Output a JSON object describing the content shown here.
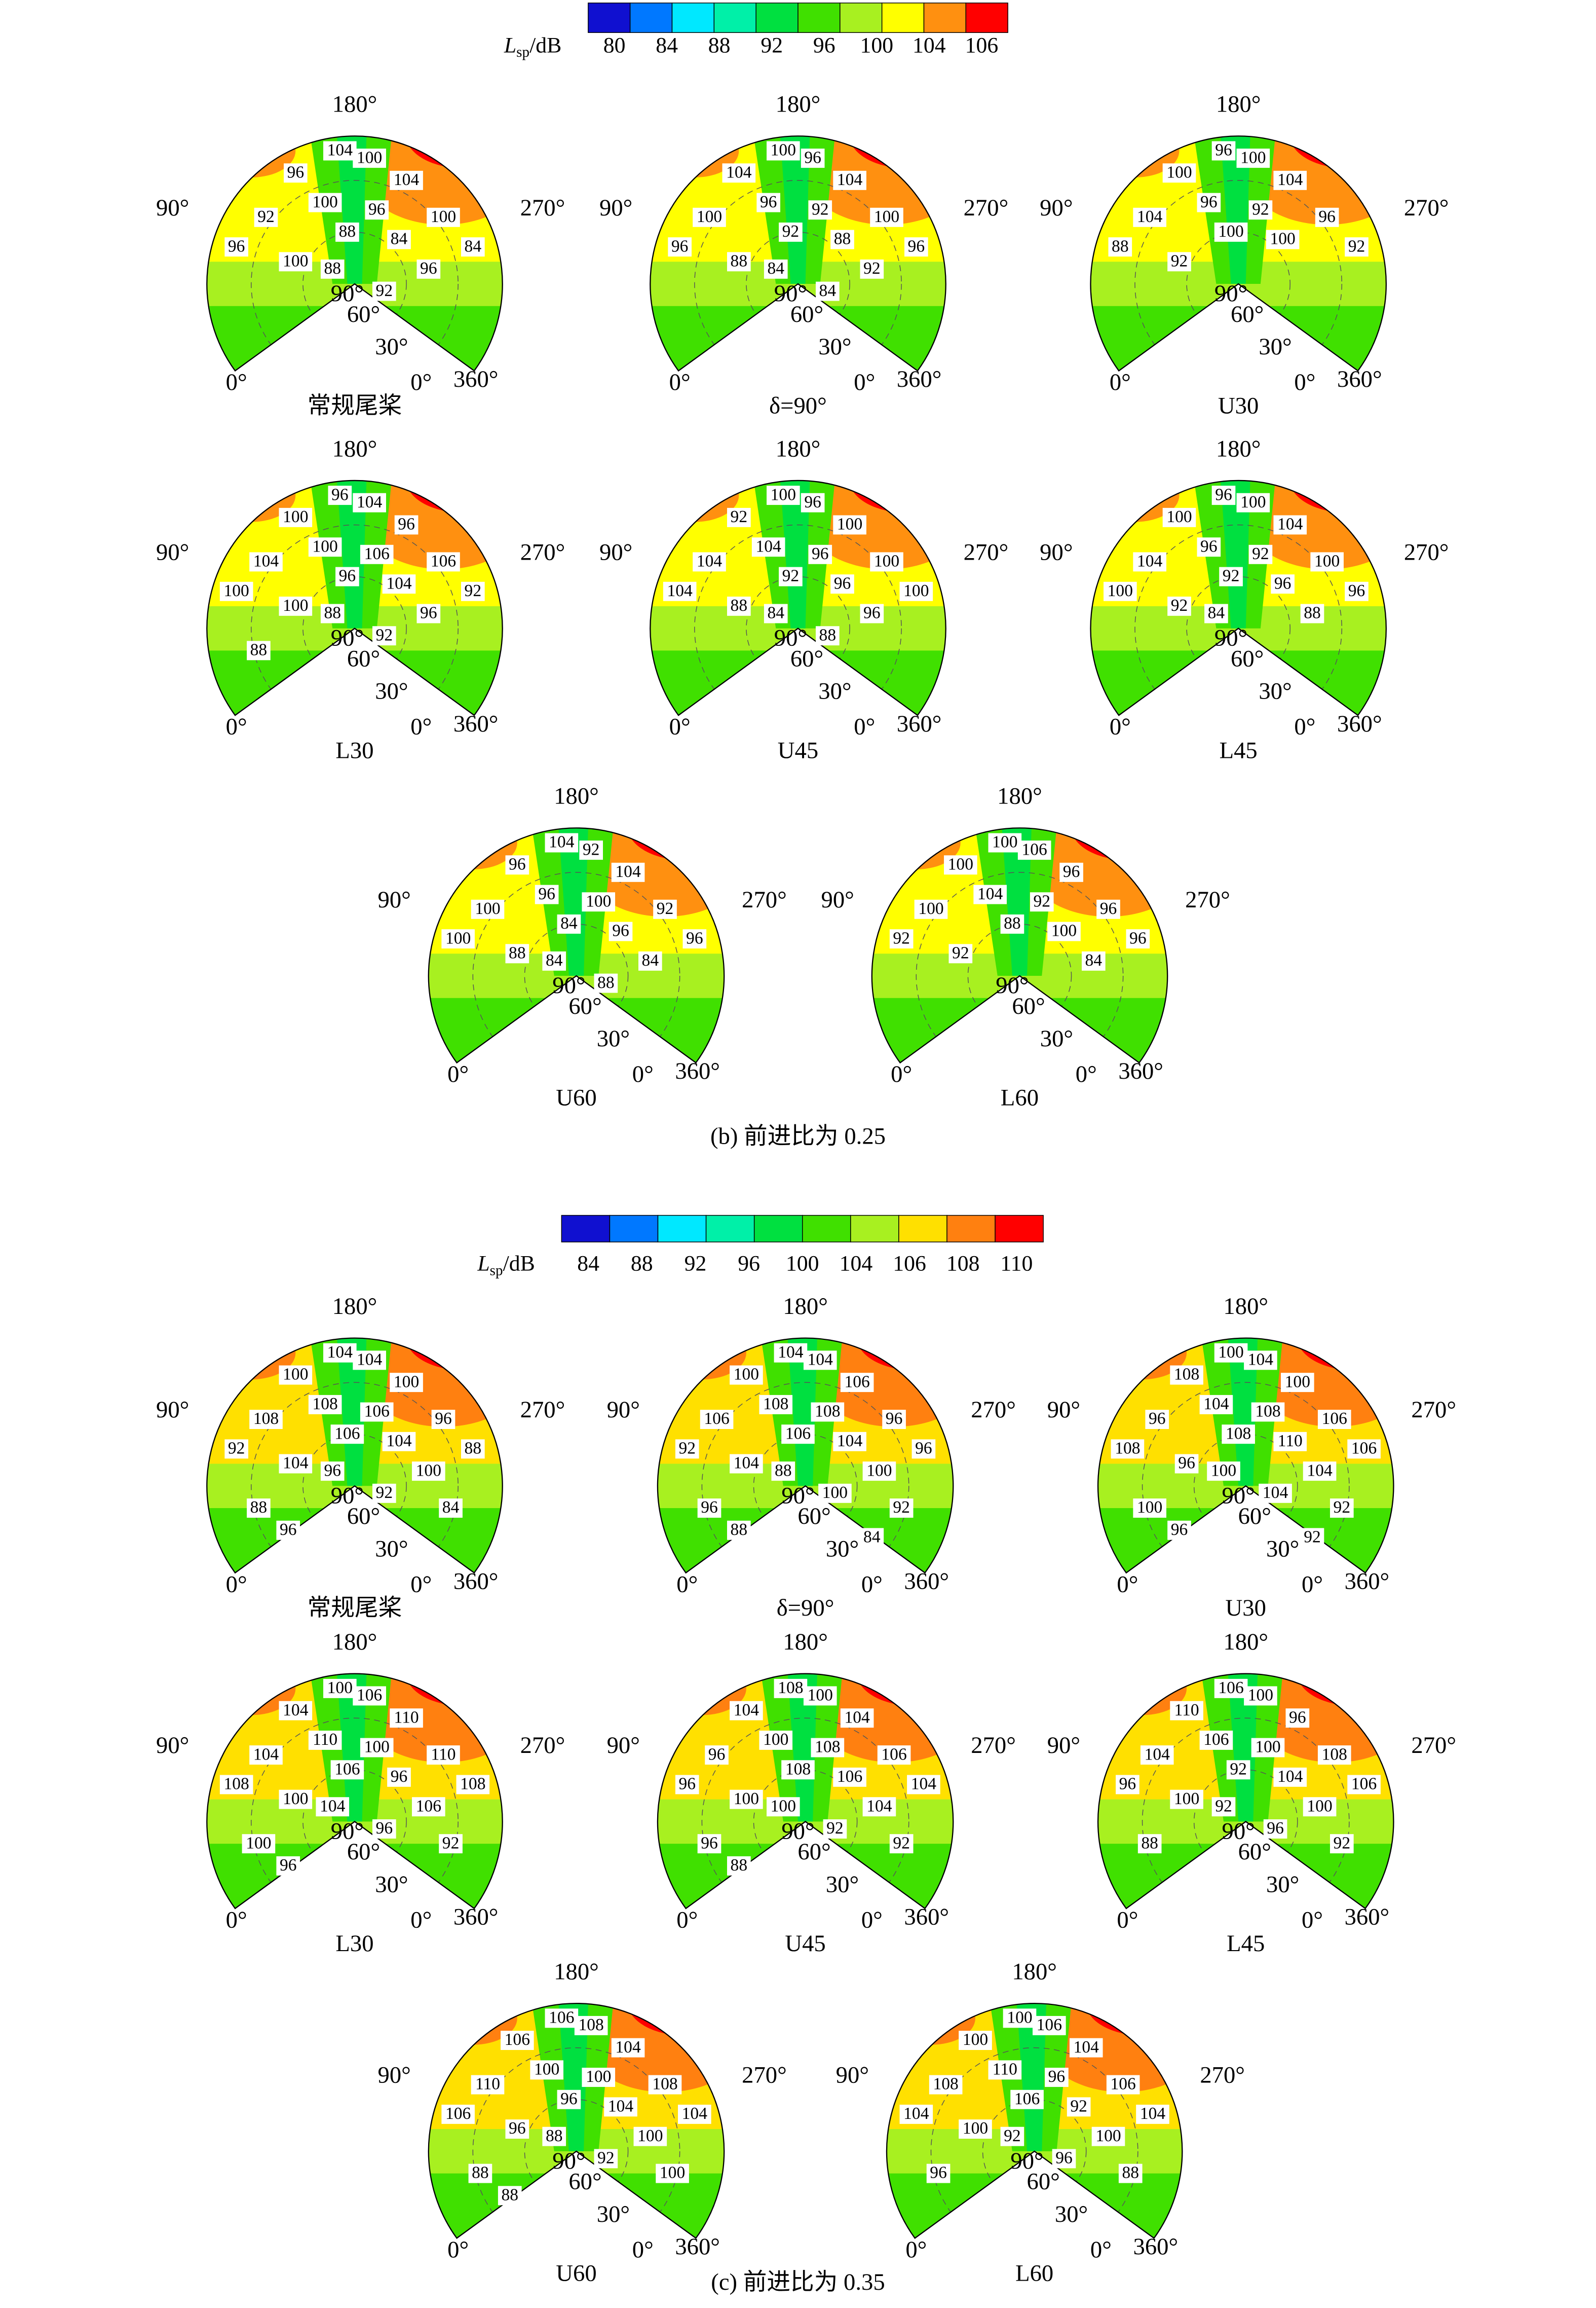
{
  "angle_labels": [
    "180°",
    "90°",
    "270°",
    "90°",
    "60°",
    "30°",
    "0°",
    "0°",
    "360°"
  ],
  "panels": [
    {
      "caption": "(b) 前进比为 0.25",
      "colorbar": {
        "label": "L",
        "label_sub": "sp",
        "label_unit": "/dB",
        "ticks": [
          80,
          84,
          88,
          92,
          96,
          100,
          104,
          106
        ],
        "colors": [
          "#1010d0",
          "#0078ff",
          "#00e8ff",
          "#00f0a8",
          "#00e040",
          "#40e000",
          "#a8f020",
          "#ffff00",
          "#ff9010",
          "#ff0000"
        ]
      },
      "plots": [
        {
          "name": "常规尾桨",
          "contour_labels": [
            104,
            100,
            96,
            104,
            100,
            96,
            92,
            100,
            88,
            84,
            96,
            84,
            100,
            96,
            88,
            92
          ]
        },
        {
          "name": "δ=90°",
          "contour_labels": [
            100,
            96,
            104,
            104,
            96,
            92,
            100,
            100,
            92,
            88,
            96,
            96,
            88,
            92,
            84,
            84
          ]
        },
        {
          "name": "U30",
          "contour_labels": [
            96,
            100,
            100,
            104,
            96,
            92,
            104,
            96,
            100,
            100,
            88,
            92,
            92
          ]
        },
        {
          "name": "L30",
          "contour_labels": [
            96,
            104,
            100,
            96,
            100,
            106,
            104,
            106,
            96,
            104,
            100,
            92,
            100,
            96,
            88,
            92,
            88
          ]
        },
        {
          "name": "U45",
          "contour_labels": [
            100,
            96,
            92,
            100,
            104,
            96,
            104,
            100,
            92,
            96,
            104,
            100,
            88,
            96,
            84,
            88
          ]
        },
        {
          "name": "L45",
          "contour_labels": [
            96,
            100,
            100,
            104,
            96,
            92,
            104,
            100,
            92,
            96,
            100,
            96,
            92,
            88,
            84
          ]
        },
        {
          "name": "U60",
          "contour_labels": [
            104,
            92,
            96,
            104,
            96,
            100,
            100,
            92,
            84,
            96,
            100,
            96,
            88,
            84,
            84,
            88
          ]
        },
        {
          "name": "L60",
          "contour_labels": [
            100,
            106,
            100,
            96,
            104,
            92,
            100,
            96,
            88,
            100,
            92,
            96,
            92,
            84
          ]
        }
      ]
    },
    {
      "caption": "(c) 前进比为 0.35",
      "colorbar": {
        "label": "L",
        "label_sub": "sp",
        "label_unit": "/dB",
        "ticks": [
          84,
          88,
          92,
          96,
          100,
          104,
          106,
          108,
          110
        ],
        "colors": [
          "#1010d0",
          "#0078ff",
          "#00e8ff",
          "#00f0a8",
          "#00e040",
          "#40e000",
          "#a8f020",
          "#ffe000",
          "#ff8010",
          "#ff0000"
        ]
      },
      "plots": [
        {
          "name": "常规尾桨",
          "contour_labels": [
            104,
            104,
            100,
            100,
            108,
            106,
            108,
            96,
            106,
            104,
            92,
            88,
            104,
            100,
            96,
            92,
            88,
            84,
            96
          ]
        },
        {
          "name": "δ=90°",
          "contour_labels": [
            104,
            104,
            100,
            106,
            108,
            108,
            106,
            96,
            106,
            104,
            92,
            96,
            104,
            100,
            88,
            100,
            96,
            92,
            88,
            84
          ]
        },
        {
          "name": "U30",
          "contour_labels": [
            100,
            104,
            108,
            100,
            104,
            108,
            96,
            106,
            108,
            110,
            108,
            106,
            96,
            104,
            100,
            104,
            100,
            92,
            96,
            92
          ]
        },
        {
          "name": "L30",
          "contour_labels": [
            100,
            106,
            104,
            110,
            110,
            100,
            104,
            110,
            106,
            96,
            108,
            108,
            100,
            106,
            104,
            96,
            100,
            92,
            96
          ]
        },
        {
          "name": "U45",
          "contour_labels": [
            108,
            100,
            104,
            104,
            100,
            108,
            96,
            106,
            108,
            106,
            96,
            104,
            100,
            104,
            100,
            92,
            96,
            92,
            88
          ]
        },
        {
          "name": "L45",
          "contour_labels": [
            106,
            100,
            110,
            96,
            106,
            100,
            104,
            108,
            92,
            104,
            96,
            106,
            100,
            100,
            92,
            96,
            88,
            92
          ]
        },
        {
          "name": "U60",
          "contour_labels": [
            106,
            108,
            106,
            104,
            100,
            100,
            110,
            108,
            96,
            104,
            106,
            104,
            96,
            100,
            88,
            92,
            88,
            100,
            88
          ]
        },
        {
          "name": "L60",
          "contour_labels": [
            100,
            106,
            100,
            104,
            110,
            96,
            108,
            106,
            106,
            92,
            104,
            104,
            100,
            100,
            92,
            96,
            96,
            88
          ]
        }
      ]
    }
  ]
}
